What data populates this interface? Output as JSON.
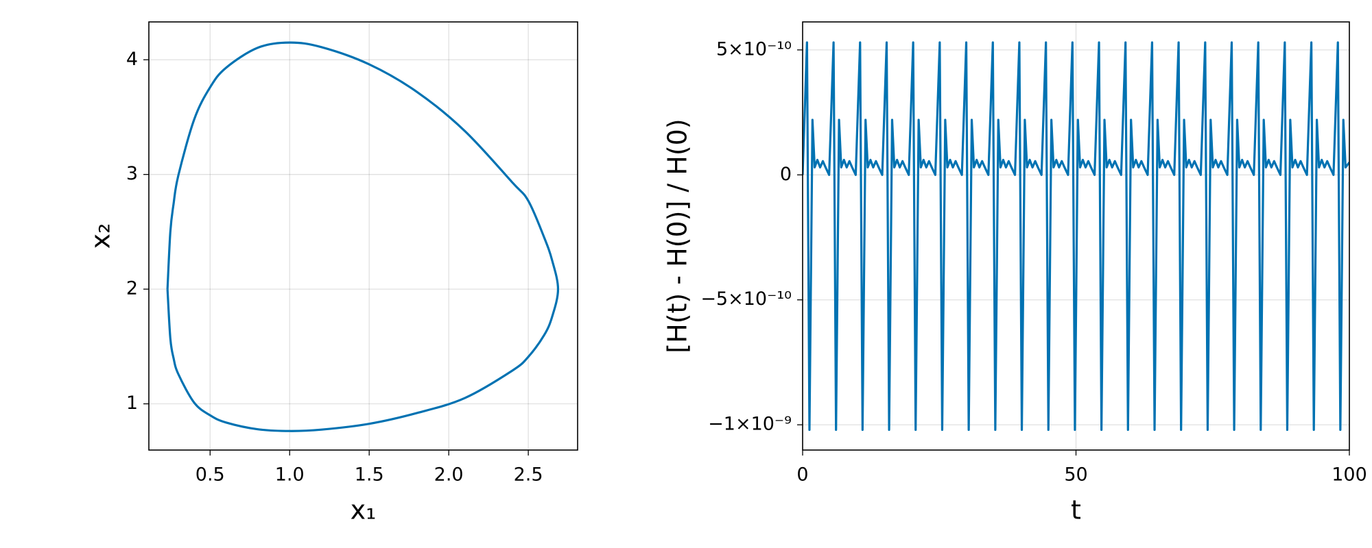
{
  "chart_data": [
    {
      "type": "line",
      "xlabel": "x₁",
      "ylabel": "x₂",
      "x": [
        0.232,
        0.25,
        0.27,
        0.3,
        0.4,
        0.5,
        0.6,
        0.8,
        1.0,
        1.2,
        1.5,
        1.8,
        2.1,
        2.4,
        2.5,
        2.6,
        2.65,
        2.687,
        2.65,
        2.6,
        2.5,
        2.4,
        2.1,
        1.8,
        1.5,
        1.2,
        1.0,
        0.8,
        0.6,
        0.5,
        0.4,
        0.3,
        0.27,
        0.25,
        0.232
      ],
      "series": [
        {
          "color": "#0072b2",
          "values": [
            2.0,
            2.5,
            2.74,
            2.99,
            3.48,
            3.76,
            3.93,
            4.105,
            4.15,
            4.11,
            3.96,
            3.72,
            3.38,
            2.93,
            2.77,
            2.45,
            2.25,
            2.0,
            1.76,
            1.6,
            1.41,
            1.29,
            1.05,
            0.92,
            0.826,
            0.775,
            0.763,
            0.778,
            0.837,
            0.9,
            1.01,
            1.26,
            1.4,
            1.57,
            2.0
          ]
        }
      ],
      "xlim": [
        0.115,
        2.81
      ],
      "ylim": [
        0.597,
        4.33
      ],
      "xticks": [
        0.5,
        {
          "value": 1.0,
          "label": "1.0"
        },
        1.5,
        {
          "value": 2.0,
          "label": "2.0"
        },
        2.5
      ],
      "yticks": [
        1,
        2,
        3,
        4
      ],
      "grid": true
    },
    {
      "type": "line",
      "xlabel": "t",
      "ylabel": "[H(t) - H(0)] / H(0)",
      "x": [
        0,
        0.8,
        1.25,
        1.8,
        2.2,
        2.7,
        3.2,
        3.7,
        4.2,
        4.85,
        5.66,
        6.11,
        6.66,
        7.06,
        7.56,
        8.06,
        8.56,
        9.06,
        9.71,
        10.51,
        10.96,
        11.51,
        11.91,
        12.41,
        12.91,
        13.41,
        13.91,
        14.56,
        15.37,
        15.82,
        16.37,
        16.77,
        17.27,
        17.77,
        18.27,
        18.77,
        19.42,
        20.22,
        20.67,
        21.22,
        21.62,
        22.12,
        22.62,
        23.12,
        23.62,
        24.27,
        25.08,
        25.53,
        26.08,
        26.48,
        26.98,
        27.48,
        27.98,
        28.48,
        29.13,
        29.93,
        30.38,
        30.93,
        31.33,
        31.83,
        32.33,
        32.83,
        33.33,
        33.98,
        34.79,
        35.24,
        35.79,
        36.19,
        36.69,
        37.19,
        37.69,
        38.19,
        38.84,
        39.64,
        40.09,
        40.64,
        41.04,
        41.54,
        42.04,
        42.54,
        43.04,
        43.69,
        44.5,
        44.95,
        45.5,
        45.9,
        46.4,
        46.9,
        47.4,
        47.9,
        48.55,
        49.35,
        49.8,
        50.35,
        50.75,
        51.25,
        51.75,
        52.25,
        52.75,
        53.4,
        54.21,
        54.66,
        55.21,
        55.61,
        56.11,
        56.61,
        57.11,
        57.61,
        58.26,
        59.06,
        59.51,
        60.06,
        60.46,
        60.96,
        61.46,
        61.96,
        62.46,
        63.11,
        63.92,
        64.37,
        64.92,
        65.32,
        65.82,
        66.32,
        66.82,
        67.32,
        67.97,
        68.77,
        69.22,
        69.77,
        70.17,
        70.67,
        71.17,
        71.67,
        72.17,
        72.82,
        73.63,
        74.08,
        74.63,
        75.03,
        75.53,
        76.03,
        76.53,
        77.03,
        77.68,
        78.48,
        78.93,
        79.48,
        79.88,
        80.38,
        80.88,
        81.38,
        81.88,
        82.53,
        83.34,
        83.79,
        84.34,
        84.74,
        85.24,
        85.74,
        86.24,
        86.74,
        87.39,
        88.19,
        88.64,
        89.19,
        89.59,
        90.09,
        90.59,
        91.09,
        91.59,
        92.24,
        93.05,
        93.5,
        94.05,
        94.45,
        94.95,
        95.45,
        95.95,
        96.45,
        97.1,
        97.9,
        98.35,
        98.9,
        99.3,
        100
      ],
      "series": [
        {
          "color": "#0072b2",
          "values": [
            0,
            5.3e-10,
            -1.02e-09,
            2.2e-10,
            3e-11,
            6e-11,
            3e-11,
            5.5e-11,
            3e-11,
            0,
            5.3e-10,
            -1.02e-09,
            2.2e-10,
            3e-11,
            6e-11,
            3e-11,
            5.5e-11,
            3e-11,
            0,
            5.3e-10,
            -1.02e-09,
            2.2e-10,
            3e-11,
            6e-11,
            3e-11,
            5.5e-11,
            3e-11,
            0,
            5.3e-10,
            -1.02e-09,
            2.2e-10,
            3e-11,
            6e-11,
            3e-11,
            5.5e-11,
            3e-11,
            0,
            5.3e-10,
            -1.02e-09,
            2.2e-10,
            3e-11,
            6e-11,
            3e-11,
            5.5e-11,
            3e-11,
            0,
            5.3e-10,
            -1.02e-09,
            2.2e-10,
            3e-11,
            6e-11,
            3e-11,
            5.5e-11,
            3e-11,
            0,
            5.3e-10,
            -1.02e-09,
            2.2e-10,
            3e-11,
            6e-11,
            3e-11,
            5.5e-11,
            3e-11,
            0,
            5.3e-10,
            -1.02e-09,
            2.2e-10,
            3e-11,
            6e-11,
            3e-11,
            5.5e-11,
            3e-11,
            0,
            5.3e-10,
            -1.02e-09,
            2.2e-10,
            3e-11,
            6e-11,
            3e-11,
            5.5e-11,
            3e-11,
            0,
            5.3e-10,
            -1.02e-09,
            2.2e-10,
            3e-11,
            6e-11,
            3e-11,
            5.5e-11,
            3e-11,
            0,
            5.3e-10,
            -1.02e-09,
            2.2e-10,
            3e-11,
            6e-11,
            3e-11,
            5.5e-11,
            3e-11,
            0,
            5.3e-10,
            -1.02e-09,
            2.2e-10,
            3e-11,
            6e-11,
            3e-11,
            5.5e-11,
            3e-11,
            0,
            5.3e-10,
            -1.02e-09,
            2.2e-10,
            3e-11,
            6e-11,
            3e-11,
            5.5e-11,
            3e-11,
            0,
            5.3e-10,
            -1.02e-09,
            2.2e-10,
            3e-11,
            6e-11,
            3e-11,
            5.5e-11,
            3e-11,
            0,
            5.3e-10,
            -1.02e-09,
            2.2e-10,
            3e-11,
            6e-11,
            3e-11,
            5.5e-11,
            3e-11,
            0,
            5.3e-10,
            -1.02e-09,
            2.2e-10,
            3e-11,
            6e-11,
            3e-11,
            5.5e-11,
            3e-11,
            0,
            5.3e-10,
            -1.02e-09,
            2.2e-10,
            3e-11,
            6e-11,
            3e-11,
            5.5e-11,
            3e-11,
            0,
            5.3e-10,
            -1.02e-09,
            2.2e-10,
            3e-11,
            6e-11,
            3e-11,
            5.5e-11,
            3e-11,
            0,
            5.3e-10,
            -1.02e-09,
            2.2e-10,
            3e-11,
            6e-11,
            3e-11,
            5.5e-11,
            3e-11,
            0,
            5.3e-10,
            -1.02e-09,
            2.2e-10,
            3e-11,
            6e-11,
            3e-11,
            5.5e-11,
            3e-11,
            0,
            5.3e-10,
            -1.02e-09,
            2.2e-10,
            3e-11,
            5e-11
          ]
        }
      ],
      "xlim": [
        0,
        100
      ],
      "ylim": [
        -1.101e-09,
        6.12e-10
      ],
      "xticks": [
        0,
        50,
        100
      ],
      "yticks": [
        {
          "value": 5e-10,
          "label": "5×10⁻¹⁰"
        },
        0,
        {
          "value": -5e-10,
          "label": "−5×10⁻¹⁰"
        },
        {
          "value": -1e-09,
          "label": "−1×10⁻⁹"
        }
      ],
      "grid": true
    }
  ]
}
